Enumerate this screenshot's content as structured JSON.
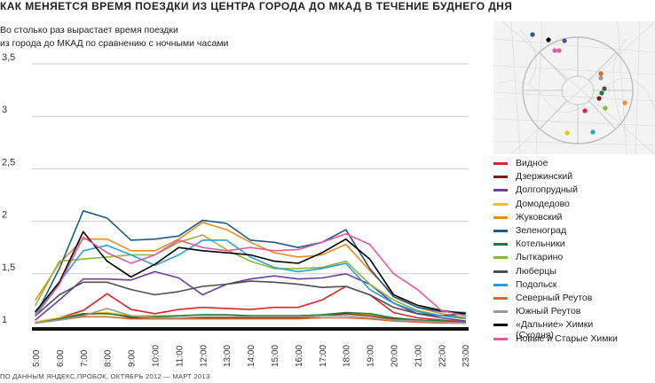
{
  "header": {
    "title": "КАК МЕНЯЕТСЯ ВРЕМЯ ПОЕЗДКИ ИЗ ЦЕНТРА ГОРОДА ДО МКАД В ТЕЧЕНИЕ БУДНЕГО ДНЯ",
    "subtitle_line1": "Во столько раз вырастает время поездки",
    "subtitle_line2": "из города до МКАД по сравнению с ночными часами"
  },
  "footer": {
    "source": "ПО ДАННЫМ ЯНДЕКС.ПРОБОК, ОКТЯБРЬ 2012 — МАРТ 2013"
  },
  "map": {
    "description_icon": "moscow-map-icon"
  },
  "chart_data": {
    "type": "line",
    "title": "КАК МЕНЯЕТСЯ ВРЕМЯ ПОЕЗДКИ ИЗ ЦЕНТРА ГОРОДА ДО МКАД В ТЕЧЕНИЕ БУДНЕГО ДНЯ",
    "ylabel": "Во столько раз вырастает время поездки из города до МКАД по сравнению с ночными часами",
    "xlabel": "",
    "categories": [
      "5:00",
      "6:00",
      "7:00",
      "8:00",
      "9:00",
      "10:00",
      "11:00",
      "12:00",
      "13:00",
      "14:00",
      "15:00",
      "16:00",
      "17:00",
      "18:00",
      "19:00",
      "20:00",
      "21:00",
      "22:00",
      "23:00"
    ],
    "y_ticks": [
      "1",
      "1,5",
      "2",
      "2,5",
      "3",
      "3,5"
    ],
    "ylim": [
      1,
      3.5
    ],
    "grid": true,
    "legend_position": "right",
    "series": [
      {
        "name": "Видное",
        "color": "#d7272e",
        "values": [
          1.04,
          1.08,
          1.15,
          1.31,
          1.16,
          1.12,
          1.16,
          1.18,
          1.17,
          1.16,
          1.18,
          1.18,
          1.25,
          1.38,
          1.3,
          1.13,
          1.08,
          1.06,
          1.04
        ]
      },
      {
        "name": "Дзержинский",
        "color": "#7a1c1c",
        "values": [
          1.03,
          1.07,
          1.11,
          1.13,
          1.08,
          1.07,
          1.07,
          1.08,
          1.08,
          1.08,
          1.08,
          1.08,
          1.1,
          1.12,
          1.1,
          1.07,
          1.05,
          1.04,
          1.03
        ]
      },
      {
        "name": "Долгопрудный",
        "color": "#6b3fa0",
        "values": [
          1.06,
          1.25,
          1.45,
          1.45,
          1.44,
          1.52,
          1.46,
          1.3,
          1.4,
          1.45,
          1.48,
          1.45,
          1.46,
          1.5,
          1.4,
          1.22,
          1.12,
          1.08,
          1.05
        ]
      },
      {
        "name": "Домодедово",
        "color": "#f2c10e",
        "values": [
          1.04,
          1.08,
          1.12,
          1.13,
          1.1,
          1.1,
          1.1,
          1.11,
          1.11,
          1.1,
          1.1,
          1.1,
          1.11,
          1.13,
          1.11,
          1.08,
          1.06,
          1.05,
          1.04
        ]
      },
      {
        "name": "Жуковский",
        "color": "#f08c1e",
        "values": [
          1.25,
          1.6,
          1.83,
          1.83,
          1.72,
          1.72,
          1.83,
          1.99,
          1.92,
          1.8,
          1.7,
          1.66,
          1.68,
          1.78,
          1.53,
          1.3,
          1.18,
          1.12,
          1.08
        ]
      },
      {
        "name": "Зеленоград",
        "color": "#1e5a8a",
        "values": [
          1.1,
          1.55,
          2.1,
          2.03,
          1.82,
          1.83,
          1.86,
          2.01,
          1.98,
          1.82,
          1.8,
          1.75,
          1.8,
          1.92,
          1.55,
          1.28,
          1.18,
          1.14,
          1.13
        ]
      },
      {
        "name": "Котельники",
        "color": "#1f7a3e",
        "values": [
          1.03,
          1.07,
          1.12,
          1.12,
          1.09,
          1.09,
          1.1,
          1.11,
          1.11,
          1.1,
          1.1,
          1.1,
          1.11,
          1.13,
          1.12,
          1.08,
          1.06,
          1.05,
          1.04
        ]
      },
      {
        "name": "Лыткарино",
        "color": "#8ab83a",
        "values": [
          1.2,
          1.62,
          1.64,
          1.66,
          1.68,
          1.68,
          1.8,
          1.87,
          1.73,
          1.62,
          1.55,
          1.55,
          1.56,
          1.62,
          1.4,
          1.25,
          1.15,
          1.1,
          1.07
        ]
      },
      {
        "name": "Люберцы",
        "color": "#4f4f4f",
        "values": [
          1.1,
          1.3,
          1.42,
          1.42,
          1.35,
          1.3,
          1.33,
          1.38,
          1.4,
          1.43,
          1.42,
          1.4,
          1.37,
          1.38,
          1.3,
          1.18,
          1.12,
          1.1,
          1.12
        ]
      },
      {
        "name": "Подольск",
        "color": "#2a9fd6",
        "values": [
          1.12,
          1.42,
          1.72,
          1.77,
          1.68,
          1.58,
          1.68,
          1.82,
          1.82,
          1.66,
          1.56,
          1.52,
          1.55,
          1.6,
          1.35,
          1.22,
          1.14,
          1.1,
          1.08
        ]
      },
      {
        "name": "Северный Реутов",
        "color": "#d96a2c",
        "values": [
          1.03,
          1.06,
          1.09,
          1.09,
          1.07,
          1.07,
          1.07,
          1.07,
          1.07,
          1.07,
          1.07,
          1.07,
          1.08,
          1.08,
          1.07,
          1.05,
          1.04,
          1.03,
          1.03
        ]
      },
      {
        "name": "Южный Реутов",
        "color": "#9a9a9a",
        "values": [
          1.03,
          1.06,
          1.1,
          1.17,
          1.1,
          1.08,
          1.08,
          1.09,
          1.09,
          1.09,
          1.09,
          1.09,
          1.1,
          1.1,
          1.08,
          1.06,
          1.05,
          1.04,
          1.03
        ]
      },
      {
        "name": "«Дальние» Химки\n(Сходня)",
        "color": "#000000",
        "values": [
          1.14,
          1.42,
          1.9,
          1.62,
          1.47,
          1.59,
          1.75,
          1.72,
          1.7,
          1.68,
          1.62,
          1.6,
          1.7,
          1.83,
          1.64,
          1.3,
          1.2,
          1.15,
          1.12
        ]
      },
      {
        "name": "Новые и Старые Химки",
        "color": "#e45aa0",
        "values": [
          1.1,
          1.4,
          1.85,
          1.7,
          1.6,
          1.68,
          1.82,
          1.75,
          1.72,
          1.75,
          1.72,
          1.73,
          1.8,
          1.88,
          1.78,
          1.5,
          1.35,
          1.15,
          1.1
        ]
      }
    ]
  }
}
